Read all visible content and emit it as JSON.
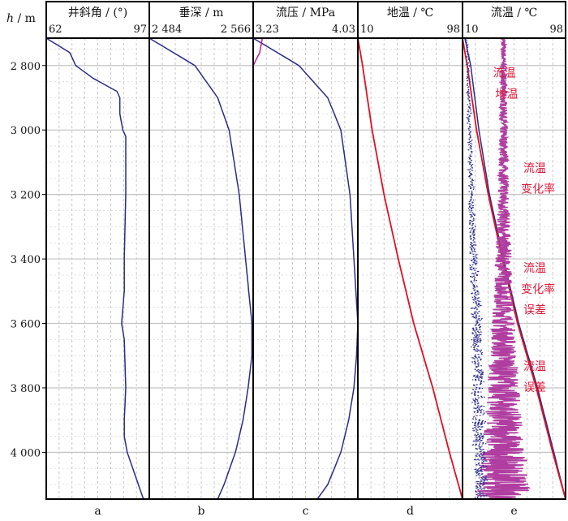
{
  "chart_data": {
    "type": "line",
    "y_axis": {
      "label": "h",
      "unit": "m",
      "range": [
        2715,
        4145
      ],
      "ticks": [
        2800,
        3000,
        3200,
        3400,
        3600,
        3800,
        4000
      ],
      "tick_labels": [
        "2 800",
        "3 000",
        "3 200",
        "3 400",
        "3 600",
        "3 800",
        "4 000"
      ]
    },
    "panels": [
      {
        "id": "a",
        "title": "井斜角 / (°)",
        "x_min_label": "62",
        "x_max_label": "97",
        "xlim": [
          62,
          97
        ],
        "series": [
          {
            "name": "井斜角",
            "color": "#2a2a8c",
            "depth": [
              2715,
              2760,
              2800,
              2840,
              2880,
              2900,
              2950,
              3000,
              3020,
              3200,
              3400,
              3500,
              3600,
              3650,
              3800,
              3900,
              3950,
              4000,
              4145
            ],
            "values": [
              62,
              70,
              72,
              78,
              86,
              87,
              87,
              88,
              89,
              89,
              88.5,
              88.5,
              87.6,
              88.5,
              89,
              88.5,
              88.5,
              89.5,
              95
            ]
          }
        ]
      },
      {
        "id": "b",
        "title": "垂深 / m",
        "x_min_label": "2 484",
        "x_max_label": "2 566",
        "xlim": [
          2484,
          2566
        ],
        "series": [
          {
            "name": "垂深",
            "color": "#2a2a8c",
            "depth": [
              2715,
              2800,
              2900,
              3000,
              3200,
              3400,
              3600,
              3700,
              3800,
              3900,
              4000,
              4100,
              4145
            ],
            "values": [
              2484,
              2520,
              2538,
              2547,
              2555,
              2560,
              2565,
              2565,
              2562,
              2558,
              2552,
              2543,
              2538
            ]
          }
        ]
      },
      {
        "id": "c",
        "title": "流压 / MPa",
        "x_min_label": "3.23",
        "x_max_label": "4.03",
        "xlim": [
          3.23,
          4.03
        ],
        "series": [
          {
            "name": "流压",
            "color": "#2a2a8c",
            "depth": [
              2715,
              2800,
              2900,
              3000,
              3200,
              3400,
              3600,
              3700,
              3800,
              3900,
              4000,
              4100,
              4145
            ],
            "values": [
              3.23,
              3.58,
              3.8,
              3.9,
              3.97,
              4.0,
              4.03,
              4.02,
              4.0,
              3.96,
              3.9,
              3.8,
              3.72
            ]
          },
          {
            "name": "流压 (magenta)",
            "color": "#c0188c",
            "depth": [
              2715,
              2760,
              2800
            ],
            "values": [
              3.3,
              3.28,
              3.23
            ]
          }
        ]
      },
      {
        "id": "d",
        "title": "地温 / ℃",
        "x_min_label": "10",
        "x_max_label": "98",
        "xlim": [
          10,
          98
        ],
        "series": [
          {
            "name": "地温",
            "color": "#e01020",
            "depth": [
              2715,
              2800,
              3000,
              3200,
              3400,
              3600,
              3800,
              4000,
              4145
            ],
            "values": [
              10,
              14,
              22,
              32,
              44,
              57,
              73,
              87,
              98
            ]
          }
        ]
      },
      {
        "id": "e",
        "title": "流温 / ℃",
        "x_min_label": "10",
        "x_max_label": "98",
        "xlim": [
          10,
          98
        ],
        "series": [
          {
            "name": "流温",
            "color": "#2a2a8c",
            "depth": [
              2715,
              2800,
              3000,
              3200,
              3400,
              3600,
              3800,
              4000,
              4145
            ],
            "values": [
              12,
              17,
              24,
              33,
              45,
              58,
              74,
              88,
              98
            ]
          },
          {
            "name": "地温",
            "color": "#e01020",
            "depth": [
              2715,
              2800,
              3000,
              3200,
              3400,
              3600,
              3800,
              4000,
              4145
            ],
            "values": [
              10,
              14,
              22,
              32,
              44,
              57,
              73,
              87,
              98
            ]
          },
          {
            "name": "流温变化率",
            "color": "#b03da0",
            "depth": [
              2715,
              2900,
              3100,
              3300,
              3500,
              3700,
              3900,
              4100,
              4145
            ],
            "values": [
              45,
              45,
              45,
              45,
              45,
              45,
              45,
              45,
              45
            ],
            "spread": [
              2,
              3,
              4,
              6,
              8,
              12,
              16,
              22,
              24
            ]
          },
          {
            "name": "流温变化率误差",
            "color": "#2a2a8c",
            "depth": [
              2715,
              3000,
              3300,
              3600,
              3900,
              4145
            ],
            "values": [
              14,
              16,
              18,
              22,
              24,
              26
            ],
            "spread": [
              1,
              2,
              3,
              5,
              6,
              6
            ]
          }
        ],
        "annotations": [
          {
            "text": "流温",
            "depth": 2835,
            "value": 36
          },
          {
            "text": "地温",
            "depth": 2900,
            "value": 38
          },
          {
            "text": "流温",
            "depth": 3130,
            "value": 62
          },
          {
            "text": "变化率",
            "depth": 3195,
            "value": 60
          },
          {
            "text": "流温",
            "depth": 3440,
            "value": 62
          },
          {
            "text": "变化率",
            "depth": 3505,
            "value": 60
          },
          {
            "text": "误差",
            "depth": 3570,
            "value": 62
          },
          {
            "text": "流温",
            "depth": 3745,
            "value": 62
          },
          {
            "text": "误差",
            "depth": 3810,
            "value": 62
          }
        ]
      }
    ]
  }
}
